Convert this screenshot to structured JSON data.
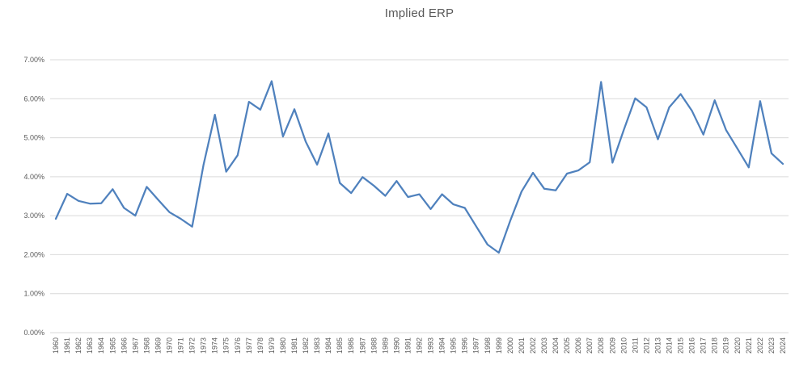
{
  "colors": {
    "line": "#4F81BD",
    "gridline": "#D9D9D9",
    "axis_line": "#D9D9D9",
    "axis_text": "#595959",
    "title_text": "#595959",
    "background": "#FFFFFF"
  },
  "y_axis": {
    "tick_labels_bottom_to_top": [
      "0.00%",
      "1.00%",
      "2.00%",
      "3.00%",
      "4.00%",
      "5.00%",
      "6.00%",
      "7.00%"
    ]
  },
  "chart_data": {
    "type": "line",
    "title": "Implied ERP",
    "xlabel": "",
    "ylabel": "",
    "ylim": [
      0,
      7
    ],
    "ytick_step": 1,
    "ytick_format": "0.00%",
    "grid": "horizontal",
    "legend": "none",
    "categories": [
      "1960",
      "1961",
      "1962",
      "1963",
      "1964",
      "1965",
      "1966",
      "1967",
      "1968",
      "1969",
      "1970",
      "1971",
      "1972",
      "1973",
      "1974",
      "1975",
      "1976",
      "1977",
      "1978",
      "1979",
      "1980",
      "1981",
      "1982",
      "1983",
      "1984",
      "1985",
      "1986",
      "1987",
      "1988",
      "1989",
      "1990",
      "1991",
      "1992",
      "1993",
      "1994",
      "1995",
      "1996",
      "1997",
      "1998",
      "1999",
      "2000",
      "2001",
      "2002",
      "2003",
      "2004",
      "2005",
      "2006",
      "2007",
      "2008",
      "2009",
      "2010",
      "2011",
      "2012",
      "2013",
      "2014",
      "2015",
      "2016",
      "2017",
      "2018",
      "2019",
      "2020",
      "2021",
      "2022",
      "2023",
      "2024"
    ],
    "series": [
      {
        "name": "Implied ERP",
        "unit": "percent",
        "values": [
          2.92,
          3.56,
          3.38,
          3.31,
          3.32,
          3.68,
          3.2,
          3.0,
          3.74,
          3.41,
          3.09,
          2.92,
          2.72,
          4.3,
          5.59,
          4.13,
          4.55,
          5.92,
          5.72,
          6.45,
          5.03,
          5.73,
          4.9,
          4.31,
          5.11,
          3.84,
          3.58,
          3.99,
          3.77,
          3.51,
          3.89,
          3.48,
          3.55,
          3.17,
          3.55,
          3.29,
          3.2,
          2.73,
          2.26,
          2.05,
          2.87,
          3.62,
          4.1,
          3.69,
          3.65,
          4.08,
          4.16,
          4.37,
          6.43,
          4.36,
          5.2,
          6.01,
          5.78,
          4.96,
          5.78,
          6.12,
          5.69,
          5.08,
          5.96,
          5.2,
          4.72,
          4.24,
          5.94,
          4.6,
          4.33
        ]
      }
    ]
  }
}
